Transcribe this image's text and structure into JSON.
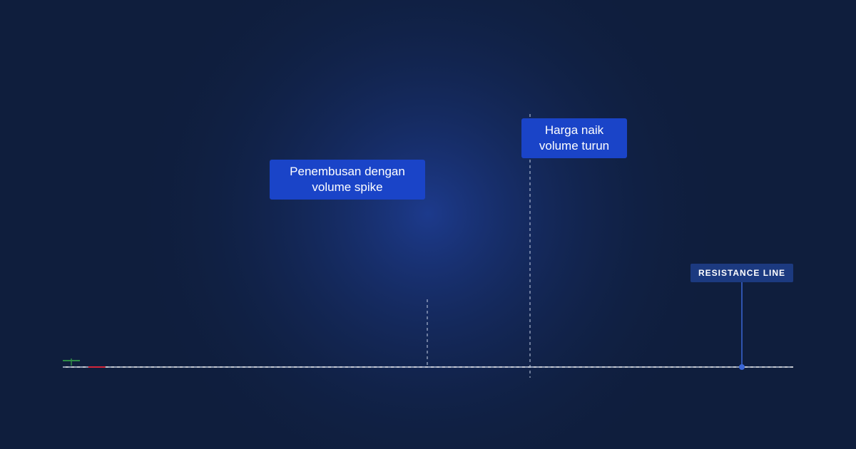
{
  "colors": {
    "background": "#0f1e3d",
    "bullish": "#2e8b47",
    "bearish": "#d4263a",
    "volume_bullish": "#17544e",
    "volume_bearish": "#6a1a2c",
    "callout": "#1a44c8",
    "resistance_label_bg": "#1c3a80"
  },
  "chart_data": {
    "type": "candlestick",
    "grid": false,
    "candles": [
      {
        "open": 10,
        "high": 12,
        "low": 2,
        "close": 10,
        "dir": "up"
      },
      {
        "open": 1,
        "high": 1,
        "low": 1,
        "close": 1,
        "dir": "down"
      }
    ],
    "volume": [],
    "resistance_level": 0,
    "support_level": 0
  },
  "annotations": {
    "breakout": "Penembusan dengan volume spike",
    "divergence": "Harga naik volume turun",
    "resistance": "RESISTANCE LINE"
  }
}
